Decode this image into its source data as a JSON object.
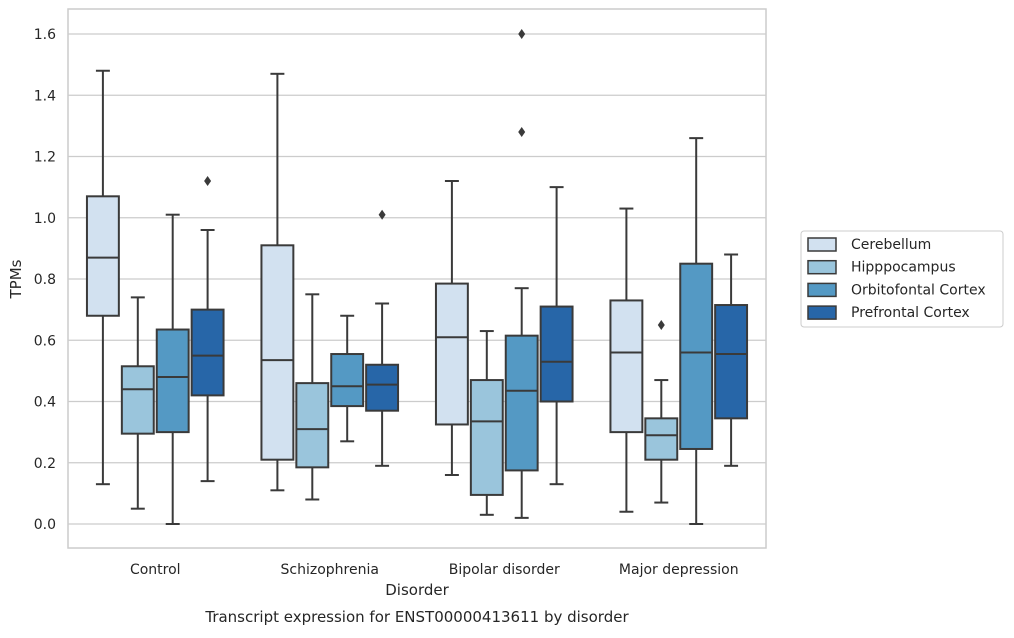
{
  "chart_data": {
    "type": "boxplot",
    "caption": "Transcript expression for ENST00000413611 by disorder",
    "xlabel": "Disorder",
    "ylabel": "TPMs",
    "ylim": [
      -0.08,
      1.68
    ],
    "yticks": [
      "0.0",
      "0.2",
      "0.4",
      "0.6",
      "0.8",
      "1.0",
      "1.2",
      "1.4",
      "1.6"
    ],
    "grid": "horizontal",
    "legend_position": "right",
    "categories": [
      "Control",
      "Schizophrenia",
      "Bipolar disorder",
      "Major depression"
    ],
    "series": [
      {
        "name": "Cerebellum",
        "color": "#d2e1f0",
        "boxes": [
          {
            "whislo": 0.13,
            "q1": 0.68,
            "med": 0.87,
            "q3": 1.07,
            "whishi": 1.48,
            "fliers": []
          },
          {
            "whislo": 0.11,
            "q1": 0.21,
            "med": 0.535,
            "q3": 0.91,
            "whishi": 1.47,
            "fliers": []
          },
          {
            "whislo": 0.16,
            "q1": 0.325,
            "med": 0.61,
            "q3": 0.785,
            "whishi": 1.12,
            "fliers": []
          },
          {
            "whislo": 0.04,
            "q1": 0.3,
            "med": 0.56,
            "q3": 0.73,
            "whishi": 1.03,
            "fliers": []
          }
        ]
      },
      {
        "name": "Hipppocampus",
        "color": "#9ac5dc",
        "boxes": [
          {
            "whislo": 0.05,
            "q1": 0.295,
            "med": 0.44,
            "q3": 0.515,
            "whishi": 0.74,
            "fliers": []
          },
          {
            "whislo": 0.08,
            "q1": 0.185,
            "med": 0.31,
            "q3": 0.46,
            "whishi": 0.75,
            "fliers": []
          },
          {
            "whislo": 0.03,
            "q1": 0.095,
            "med": 0.335,
            "q3": 0.47,
            "whishi": 0.63,
            "fliers": []
          },
          {
            "whislo": 0.07,
            "q1": 0.21,
            "med": 0.29,
            "q3": 0.345,
            "whishi": 0.47,
            "fliers": [
              0.65
            ]
          }
        ]
      },
      {
        "name": "Orbitofontal Cortex",
        "color": "#5499c4",
        "boxes": [
          {
            "whislo": 0.0,
            "q1": 0.3,
            "med": 0.48,
            "q3": 0.635,
            "whishi": 1.01,
            "fliers": []
          },
          {
            "whislo": 0.27,
            "q1": 0.385,
            "med": 0.45,
            "q3": 0.555,
            "whishi": 0.68,
            "fliers": []
          },
          {
            "whislo": 0.02,
            "q1": 0.175,
            "med": 0.435,
            "q3": 0.615,
            "whishi": 0.77,
            "fliers": [
              1.28,
              1.6
            ]
          },
          {
            "whislo": 0.0,
            "q1": 0.245,
            "med": 0.56,
            "q3": 0.85,
            "whishi": 1.26,
            "fliers": []
          }
        ]
      },
      {
        "name": "Prefrontal Cortex",
        "color": "#2766a8",
        "boxes": [
          {
            "whislo": 0.14,
            "q1": 0.42,
            "med": 0.55,
            "q3": 0.7,
            "whishi": 0.96,
            "fliers": [
              1.12
            ]
          },
          {
            "whislo": 0.19,
            "q1": 0.37,
            "med": 0.455,
            "q3": 0.52,
            "whishi": 0.72,
            "fliers": [
              1.01
            ]
          },
          {
            "whislo": 0.13,
            "q1": 0.4,
            "med": 0.53,
            "q3": 0.71,
            "whishi": 1.1,
            "fliers": []
          },
          {
            "whislo": 0.19,
            "q1": 0.345,
            "med": 0.555,
            "q3": 0.715,
            "whishi": 0.88,
            "fliers": []
          }
        ]
      }
    ]
  }
}
